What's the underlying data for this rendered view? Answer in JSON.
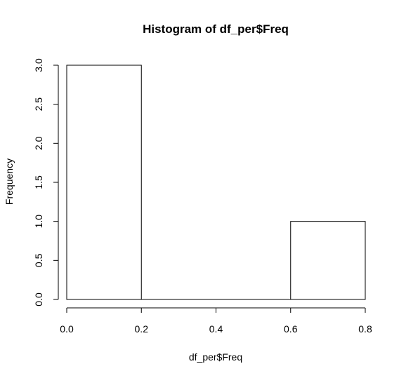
{
  "chart_data": {
    "type": "bar",
    "title": "Histogram of df_per$Freq",
    "xlabel": "df_per$Freq",
    "ylabel": "Frequency",
    "bins": [
      {
        "x0": 0.0,
        "x1": 0.2,
        "count": 3
      },
      {
        "x0": 0.2,
        "x1": 0.4,
        "count": 0
      },
      {
        "x0": 0.4,
        "x1": 0.6,
        "count": 0
      },
      {
        "x0": 0.6,
        "x1": 0.8,
        "count": 1
      }
    ],
    "xlim": [
      0.0,
      0.8
    ],
    "ylim": [
      0.0,
      3.0
    ],
    "xticks": [
      "0.0",
      "0.2",
      "0.4",
      "0.6",
      "0.8"
    ],
    "yticks": [
      "0.0",
      "0.5",
      "1.0",
      "1.5",
      "2.0",
      "2.5",
      "3.0"
    ],
    "bar_fill": "#ffffff",
    "bar_stroke": "#000000",
    "grid": false
  }
}
